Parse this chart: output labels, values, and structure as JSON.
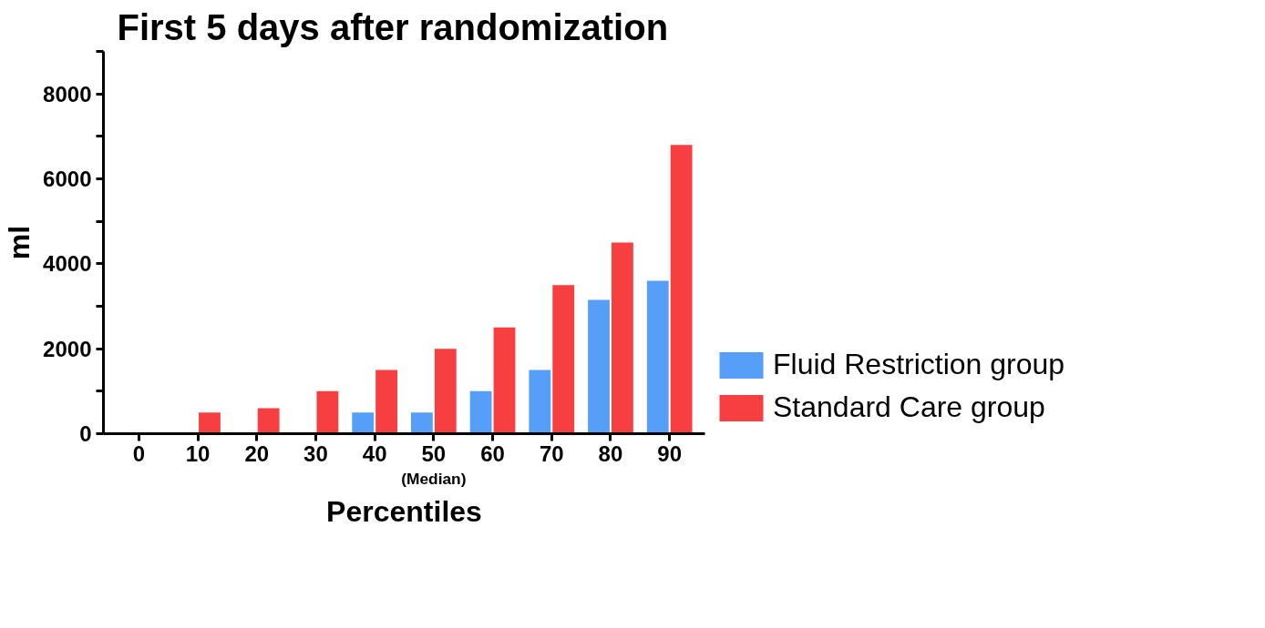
{
  "chart_data": {
    "type": "bar",
    "title": "First 5 days after randomization",
    "xlabel": "Percentiles",
    "ylabel": "ml",
    "categories": [
      "0",
      "10",
      "20",
      "30",
      "40",
      "50",
      "60",
      "70",
      "80",
      "90"
    ],
    "series": [
      {
        "name": "Fluid Restriction group",
        "color": "#559ff8",
        "values": [
          0,
          0,
          0,
          0,
          500,
          500,
          1000,
          1500,
          3150,
          3600
        ]
      },
      {
        "name": "Standard Care group",
        "color": "#f73e40",
        "values": [
          0,
          500,
          600,
          1000,
          1500,
          2000,
          2500,
          3500,
          4500,
          6800
        ]
      }
    ],
    "ylim": [
      0,
      9000
    ],
    "yticks": [
      0,
      {
        "value": 1000,
        "label": null
      },
      2000,
      {
        "value": 3000,
        "label": null
      },
      4000,
      {
        "value": 5000,
        "label": null
      },
      6000,
      {
        "value": 7000,
        "label": null
      },
      8000,
      {
        "value": 9000,
        "label": null
      }
    ],
    "annotations": [
      "(Median)"
    ],
    "grid": false,
    "legend": "right"
  }
}
